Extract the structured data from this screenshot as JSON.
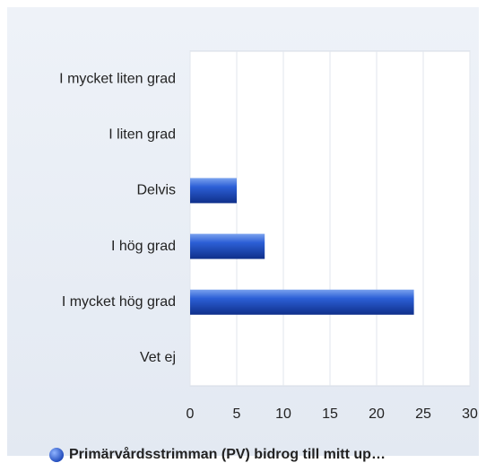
{
  "chart_data": {
    "type": "bar",
    "orientation": "horizontal",
    "categories": [
      "I mycket liten grad",
      "I liten grad",
      "Delvis",
      "I hög grad",
      "I mycket hög grad",
      "Vet ej"
    ],
    "series": [
      {
        "name": "Primärvårdsstrimman (PV) bidrog till mitt up…",
        "color": "#2255cc",
        "values": [
          0,
          0,
          5,
          8,
          24,
          0
        ]
      }
    ],
    "xlim": [
      0,
      30
    ],
    "xticks": [
      0,
      5,
      10,
      15,
      20,
      25,
      30
    ],
    "grid": true,
    "legend": "bottom"
  }
}
